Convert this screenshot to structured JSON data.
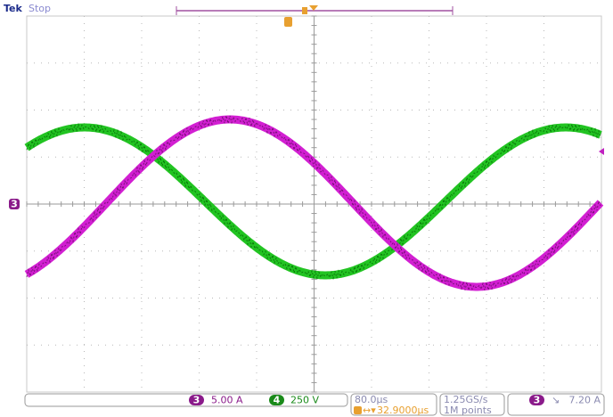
{
  "header": {
    "brand": "Tek",
    "status": "Stop"
  },
  "channel_marker": "3",
  "bottom": {
    "ch3": {
      "badge": "3",
      "scale": "5.00 A"
    },
    "ch4": {
      "badge": "4",
      "scale": "250 V"
    },
    "timebase": "80.0µs",
    "trigger_position": "32.9000µs",
    "sample_rate": "1.25GS/s",
    "record_length": "1M points",
    "trigger": {
      "badge": "3",
      "level": "7.20 A"
    }
  }
}
